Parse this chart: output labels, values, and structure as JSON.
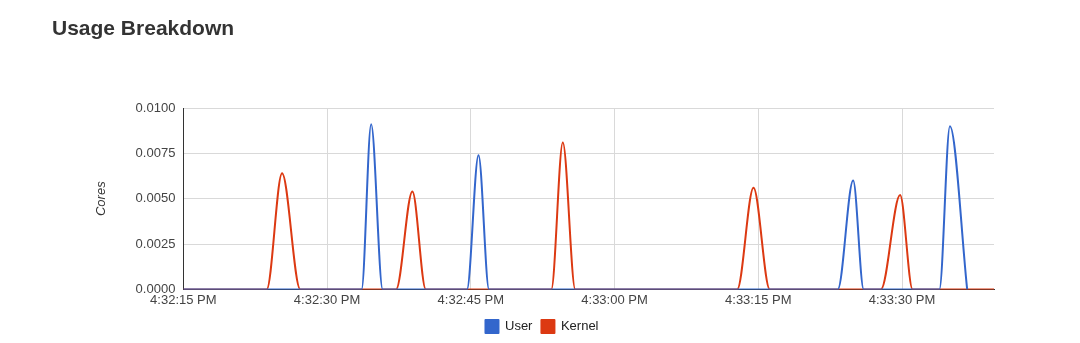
{
  "chart_data": {
    "type": "line",
    "title": "Usage Breakdown",
    "ylabel": "Cores",
    "xlim": [
      16.5375,
      16.561
    ],
    "xticks": [
      {
        "value": 16.5375,
        "label": "4:32:15 PM"
      },
      {
        "value": 16.541667,
        "label": "4:32:30 PM"
      },
      {
        "value": 16.545833,
        "label": "4:32:45 PM"
      },
      {
        "value": 16.55,
        "label": "4:33:00 PM"
      },
      {
        "value": 16.554167,
        "label": "4:33:15 PM"
      },
      {
        "value": 16.558333,
        "label": "4:33:30 PM"
      }
    ],
    "ylim": [
      0,
      0.01
    ],
    "yticks": [
      {
        "value": 0,
        "label": "0.0000"
      },
      {
        "value": 0.0025,
        "label": "0.0025"
      },
      {
        "value": 0.005,
        "label": "0.0050"
      },
      {
        "value": 0.0075,
        "label": "0.0075"
      },
      {
        "value": 0.01,
        "label": "0.0100"
      }
    ],
    "grid": true,
    "legend": "bottom",
    "marker": "none",
    "line_style": "solid",
    "series": [
      {
        "name": "User",
        "color": "#3366cc",
        "x": [
          16.5375,
          16.542667,
          16.542944,
          16.543278,
          16.545722,
          16.546056,
          16.546361,
          16.556472,
          16.556917,
          16.557222,
          16.559417,
          16.559722,
          16.560222
        ],
        "values": [
          0,
          0,
          0.0091,
          0,
          0,
          0.0074,
          0,
          0,
          0.006,
          0,
          0,
          0.009,
          0
        ]
      },
      {
        "name": "Kernel",
        "color": "#dc3912",
        "x": [
          16.5375,
          16.539917,
          16.540361,
          16.540889,
          16.543667,
          16.544139,
          16.544528,
          16.548167,
          16.5485,
          16.548861,
          16.553556,
          16.554028,
          16.5545,
          16.557722,
          16.558278,
          16.558639,
          16.561
        ],
        "values": [
          0,
          0,
          0.0064,
          0,
          0,
          0.0054,
          0,
          0,
          0.0081,
          0,
          0,
          0.0056,
          0,
          0,
          0.0052,
          0,
          0
        ]
      }
    ]
  }
}
